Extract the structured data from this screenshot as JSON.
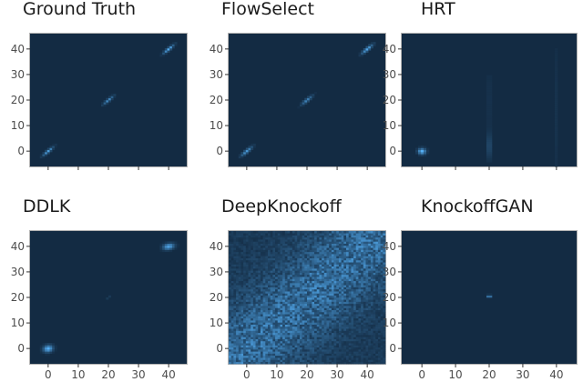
{
  "chart_data": {
    "type": "heatmap",
    "xlim": [
      -6,
      46
    ],
    "ylim": [
      -6,
      46
    ],
    "ticks": [
      0,
      10,
      20,
      30,
      40
    ],
    "tick_labels": [
      "0",
      "10",
      "20",
      "30",
      "40"
    ],
    "grid": false,
    "colors": {
      "background": "#132b43",
      "low": "#132b43",
      "high": "#56b1f7"
    },
    "panels": [
      {
        "title": "Ground Truth",
        "x_ticks_visible": false,
        "blobs": [
          {
            "x": 0,
            "y": 0,
            "sigma_major": 1.6,
            "sigma_minor": 0.35,
            "angle": 45,
            "peak": 0.85
          },
          {
            "x": 20,
            "y": 20,
            "sigma_major": 1.6,
            "sigma_minor": 0.35,
            "angle": 45,
            "peak": 0.7
          },
          {
            "x": 40,
            "y": 40,
            "sigma_major": 1.6,
            "sigma_minor": 0.35,
            "angle": 45,
            "peak": 0.95
          }
        ]
      },
      {
        "title": "FlowSelect",
        "x_ticks_visible": false,
        "blobs": [
          {
            "x": 0,
            "y": 0,
            "sigma_major": 1.7,
            "sigma_minor": 0.4,
            "angle": 45,
            "peak": 0.8
          },
          {
            "x": 20,
            "y": 20,
            "sigma_major": 1.7,
            "sigma_minor": 0.4,
            "angle": 45,
            "peak": 0.65
          },
          {
            "x": 40,
            "y": 40,
            "sigma_major": 1.7,
            "sigma_minor": 0.4,
            "angle": 45,
            "peak": 0.9
          }
        ]
      },
      {
        "title": "HRT",
        "x_ticks_visible": false,
        "blobs": [
          {
            "x": 0,
            "y": 0,
            "sigma_major": 0.8,
            "sigma_minor": 0.8,
            "angle": 0,
            "peak": 1.0
          },
          {
            "x": 20,
            "y": 2,
            "sigma_major": 3.5,
            "sigma_minor": 0.35,
            "angle": 90,
            "peak": 0.35
          },
          {
            "x": 20,
            "y": 20,
            "sigma_major": 10,
            "sigma_minor": 0.3,
            "angle": 90,
            "peak": 0.12
          },
          {
            "x": 40,
            "y": 15,
            "sigma_major": 22,
            "sigma_minor": 0.3,
            "angle": 90,
            "peak": 0.06
          }
        ]
      },
      {
        "title": "DDLK",
        "x_ticks_visible": true,
        "blobs": [
          {
            "x": 0,
            "y": 0,
            "sigma_major": 1.1,
            "sigma_minor": 0.9,
            "angle": 20,
            "peak": 1.0
          },
          {
            "x": 40,
            "y": 40,
            "sigma_major": 1.3,
            "sigma_minor": 0.8,
            "angle": 15,
            "peak": 0.9
          },
          {
            "x": 20,
            "y": 20,
            "sigma_major": 1.0,
            "sigma_minor": 0.3,
            "angle": 45,
            "peak": 0.12
          }
        ]
      },
      {
        "title": "DeepKnockoff",
        "x_ticks_visible": true,
        "band": {
          "slope": 1,
          "intercept": 0,
          "spread": 10,
          "noise": true,
          "peak": 0.55,
          "floor": 0.12
        }
      },
      {
        "title": "KnockoffGAN",
        "x_ticks_visible": true,
        "blobs": [
          {
            "x": 20,
            "y": 20.5,
            "sigma_major": 0.35,
            "sigma_minor": 0.35,
            "angle": 0,
            "peak": 1.0
          }
        ]
      }
    ]
  }
}
